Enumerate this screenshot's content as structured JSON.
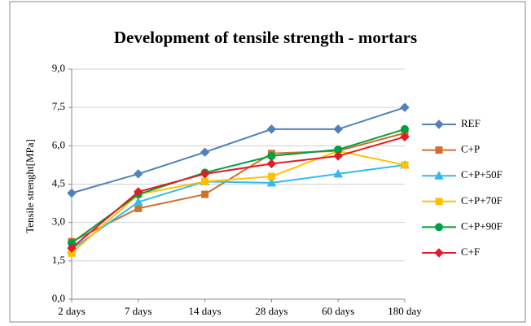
{
  "chart_data": {
    "type": "line",
    "title": "Development of tensile strength - mortars",
    "y_label": "Tensile strenght[MPa]",
    "categories": [
      "2 days",
      "7 days",
      "14 days",
      "28 days",
      "60 days",
      "180 day"
    ],
    "ylim": [
      0,
      9
    ],
    "yticks": [
      {
        "value": 0,
        "label": "0,0"
      },
      {
        "value": 1.5,
        "label": "1,5"
      },
      {
        "value": 3,
        "label": "3,0"
      },
      {
        "value": 4.5,
        "label": "4,5"
      },
      {
        "value": 6,
        "label": "6,0"
      },
      {
        "value": 7.5,
        "label": "7,5"
      },
      {
        "value": 9,
        "label": "9,0"
      }
    ],
    "grid": true,
    "legend": "right",
    "series": [
      {
        "name": "REF",
        "color": "#4f81bd",
        "marker": "diamond",
        "values": [
          4.15,
          4.9,
          5.75,
          6.65,
          6.65,
          7.5
        ]
      },
      {
        "name": "C+P",
        "color": "#d0702c",
        "marker": "square",
        "values": [
          2.25,
          3.55,
          4.1,
          5.7,
          5.8,
          6.5
        ]
      },
      {
        "name": "C+P+50F",
        "color": "#33bbee",
        "marker": "triangle",
        "values": [
          1.95,
          3.8,
          4.6,
          4.55,
          4.9,
          5.25
        ]
      },
      {
        "name": "C+P+70F",
        "color": "#ffc000",
        "marker": "square",
        "values": [
          1.8,
          4.1,
          4.6,
          4.8,
          5.8,
          5.25
        ]
      },
      {
        "name": "C+P+90F",
        "color": "#00a040",
        "marker": "circle",
        "values": [
          2.2,
          4.1,
          4.95,
          5.6,
          5.85,
          6.65
        ]
      },
      {
        "name": "C+F",
        "color": "#e31c23",
        "marker": "diamond",
        "values": [
          2.0,
          4.2,
          4.9,
          5.3,
          5.6,
          6.35
        ]
      }
    ]
  }
}
